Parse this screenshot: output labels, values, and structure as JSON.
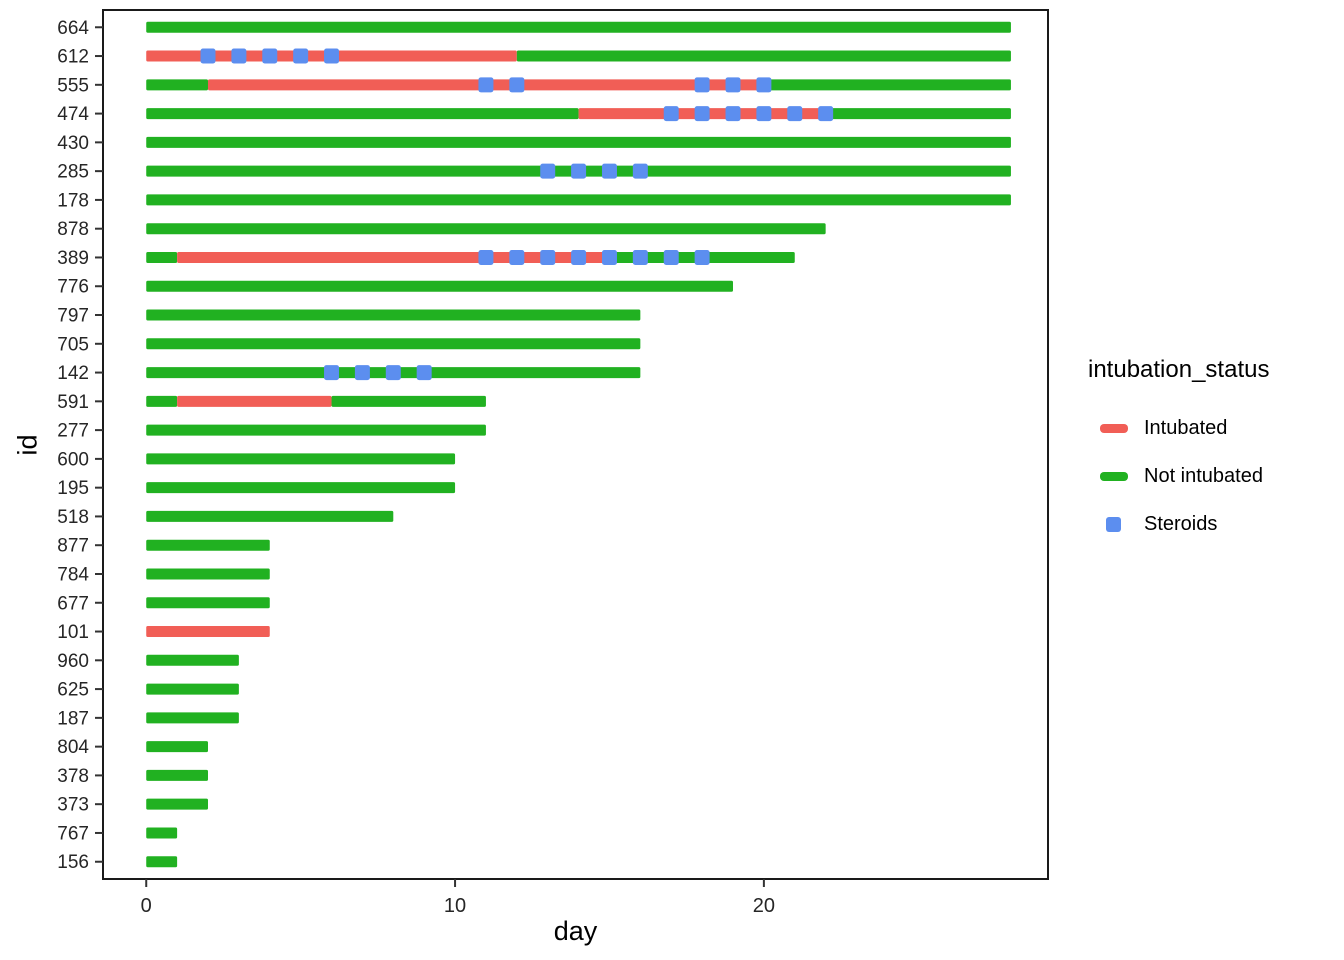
{
  "chart_data": {
    "type": "bar",
    "subtype": "horizontal-swimmer-timeline",
    "title": "",
    "xlabel": "day",
    "ylabel": "id",
    "x_ticks": [
      0,
      10,
      20
    ],
    "xlim": [
      -1.4,
      29.2
    ],
    "grid": false,
    "panel": {
      "background": "#ffffff",
      "border_color": "#1a1a1a"
    },
    "axis_text_color": "#262626",
    "legend": {
      "position": "right",
      "title": "intubation_status",
      "items": [
        {
          "label": "Intubated",
          "color": "#f15e56",
          "shape": "bar"
        },
        {
          "label": "Not intubated",
          "color": "#21b121",
          "shape": "bar"
        },
        {
          "label": "Steroids",
          "color": "#5c8eef",
          "shape": "square"
        }
      ]
    },
    "patients": [
      {
        "id": "664",
        "segments": [
          {
            "status": "Not intubated",
            "start": 0,
            "end": 28
          }
        ],
        "steroid_days": []
      },
      {
        "id": "612",
        "segments": [
          {
            "status": "Intubated",
            "start": 0,
            "end": 12
          },
          {
            "status": "Not intubated",
            "start": 12,
            "end": 28
          }
        ],
        "steroid_days": [
          2,
          3,
          4,
          5,
          6
        ]
      },
      {
        "id": "555",
        "segments": [
          {
            "status": "Not intubated",
            "start": 0,
            "end": 2
          },
          {
            "status": "Intubated",
            "start": 2,
            "end": 20
          },
          {
            "status": "Not intubated",
            "start": 20,
            "end": 28
          }
        ],
        "steroid_days": [
          11,
          12,
          18,
          19,
          20
        ]
      },
      {
        "id": "474",
        "segments": [
          {
            "status": "Not intubated",
            "start": 0,
            "end": 14
          },
          {
            "status": "Intubated",
            "start": 14,
            "end": 22
          },
          {
            "status": "Not intubated",
            "start": 22,
            "end": 28
          }
        ],
        "steroid_days": [
          17,
          18,
          19,
          20,
          21,
          22
        ]
      },
      {
        "id": "430",
        "segments": [
          {
            "status": "Not intubated",
            "start": 0,
            "end": 28
          }
        ],
        "steroid_days": []
      },
      {
        "id": "285",
        "segments": [
          {
            "status": "Not intubated",
            "start": 0,
            "end": 28
          }
        ],
        "steroid_days": [
          13,
          14,
          15,
          16
        ]
      },
      {
        "id": "178",
        "segments": [
          {
            "status": "Not intubated",
            "start": 0,
            "end": 28
          }
        ],
        "steroid_days": []
      },
      {
        "id": "878",
        "segments": [
          {
            "status": "Not intubated",
            "start": 0,
            "end": 22
          }
        ],
        "steroid_days": []
      },
      {
        "id": "389",
        "segments": [
          {
            "status": "Not intubated",
            "start": 0,
            "end": 1
          },
          {
            "status": "Intubated",
            "start": 1,
            "end": 15
          },
          {
            "status": "Not intubated",
            "start": 15,
            "end": 21
          }
        ],
        "steroid_days": [
          11,
          12,
          13,
          14,
          15,
          16,
          17,
          18
        ]
      },
      {
        "id": "776",
        "segments": [
          {
            "status": "Not intubated",
            "start": 0,
            "end": 19
          }
        ],
        "steroid_days": []
      },
      {
        "id": "797",
        "segments": [
          {
            "status": "Not intubated",
            "start": 0,
            "end": 16
          }
        ],
        "steroid_days": []
      },
      {
        "id": "705",
        "segments": [
          {
            "status": "Not intubated",
            "start": 0,
            "end": 16
          }
        ],
        "steroid_days": []
      },
      {
        "id": "142",
        "segments": [
          {
            "status": "Not intubated",
            "start": 0,
            "end": 16
          }
        ],
        "steroid_days": [
          6,
          7,
          8,
          9
        ]
      },
      {
        "id": "591",
        "segments": [
          {
            "status": "Not intubated",
            "start": 0,
            "end": 1
          },
          {
            "status": "Intubated",
            "start": 1,
            "end": 6
          },
          {
            "status": "Not intubated",
            "start": 6,
            "end": 11
          }
        ],
        "steroid_days": []
      },
      {
        "id": "277",
        "segments": [
          {
            "status": "Not intubated",
            "start": 0,
            "end": 11
          }
        ],
        "steroid_days": []
      },
      {
        "id": "600",
        "segments": [
          {
            "status": "Not intubated",
            "start": 0,
            "end": 10
          }
        ],
        "steroid_days": []
      },
      {
        "id": "195",
        "segments": [
          {
            "status": "Not intubated",
            "start": 0,
            "end": 10
          }
        ],
        "steroid_days": []
      },
      {
        "id": "518",
        "segments": [
          {
            "status": "Not intubated",
            "start": 0,
            "end": 8
          }
        ],
        "steroid_days": []
      },
      {
        "id": "877",
        "segments": [
          {
            "status": "Not intubated",
            "start": 0,
            "end": 4
          }
        ],
        "steroid_days": []
      },
      {
        "id": "784",
        "segments": [
          {
            "status": "Not intubated",
            "start": 0,
            "end": 4
          }
        ],
        "steroid_days": []
      },
      {
        "id": "677",
        "segments": [
          {
            "status": "Not intubated",
            "start": 0,
            "end": 4
          }
        ],
        "steroid_days": []
      },
      {
        "id": "101",
        "segments": [
          {
            "status": "Intubated",
            "start": 0,
            "end": 4
          }
        ],
        "steroid_days": []
      },
      {
        "id": "960",
        "segments": [
          {
            "status": "Not intubated",
            "start": 0,
            "end": 3
          }
        ],
        "steroid_days": []
      },
      {
        "id": "625",
        "segments": [
          {
            "status": "Not intubated",
            "start": 0,
            "end": 3
          }
        ],
        "steroid_days": []
      },
      {
        "id": "187",
        "segments": [
          {
            "status": "Not intubated",
            "start": 0,
            "end": 3
          }
        ],
        "steroid_days": []
      },
      {
        "id": "804",
        "segments": [
          {
            "status": "Not intubated",
            "start": 0,
            "end": 2
          }
        ],
        "steroid_days": []
      },
      {
        "id": "378",
        "segments": [
          {
            "status": "Not intubated",
            "start": 0,
            "end": 2
          }
        ],
        "steroid_days": []
      },
      {
        "id": "373",
        "segments": [
          {
            "status": "Not intubated",
            "start": 0,
            "end": 2
          }
        ],
        "steroid_days": []
      },
      {
        "id": "767",
        "segments": [
          {
            "status": "Not intubated",
            "start": 0,
            "end": 1
          }
        ],
        "steroid_days": []
      },
      {
        "id": "156",
        "segments": [
          {
            "status": "Not intubated",
            "start": 0,
            "end": 1
          }
        ],
        "steroid_days": []
      }
    ]
  }
}
